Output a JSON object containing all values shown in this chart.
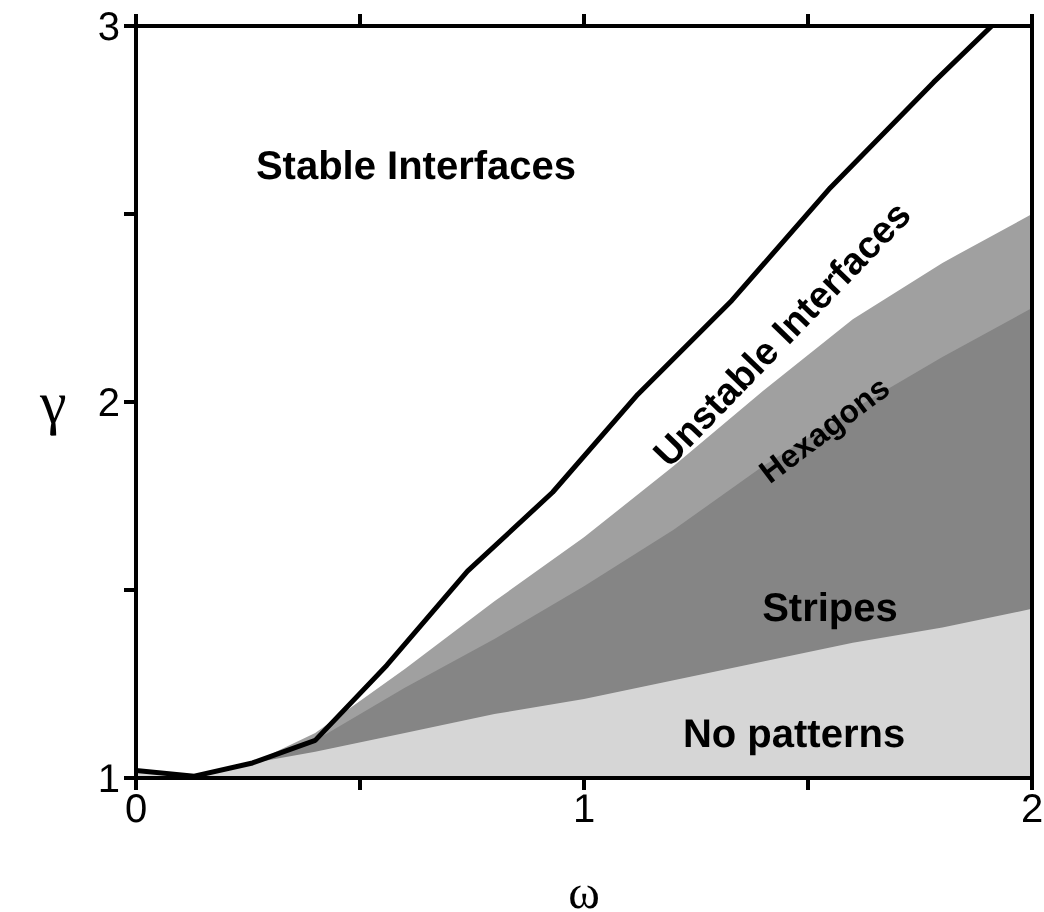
{
  "chart_data": {
    "type": "area",
    "xlabel": "ω",
    "ylabel": "γ",
    "x": [
      0,
      0.13,
      0.26,
      0.4,
      0.6,
      0.8,
      1.0,
      1.2,
      1.4,
      1.6,
      1.8,
      2.0
    ],
    "series": [
      {
        "color": "#a0a0a0",
        "values": [
          1.02,
          1.005,
          1.04,
          1.12,
          1.29,
          1.47,
          1.64,
          1.83,
          2.03,
          2.22,
          2.37,
          2.5
        ]
      },
      {
        "color": "#858585",
        "values": [
          1.02,
          1.005,
          1.04,
          1.1,
          1.24,
          1.37,
          1.51,
          1.66,
          1.83,
          1.98,
          2.12,
          2.25
        ]
      },
      {
        "color": "#d6d6d6",
        "values": [
          1.02,
          1.005,
          1.04,
          1.07,
          1.12,
          1.17,
          1.21,
          1.26,
          1.31,
          1.36,
          1.4,
          1.45
        ]
      },
      {
        "type": "line",
        "color": "#000000",
        "x": [
          0,
          0.13,
          0.26,
          0.4,
          0.56,
          0.74,
          0.93,
          1.12,
          1.33,
          1.55,
          1.78,
          1.91
        ],
        "values": [
          1.02,
          1.005,
          1.04,
          1.1,
          1.3,
          1.55,
          1.76,
          2.02,
          2.27,
          2.57,
          2.85,
          3.0
        ]
      }
    ],
    "annotations": [
      "Stable Interfaces",
      "Unstable Interfaces",
      "Hexagons",
      "Stripes",
      "No patterns"
    ],
    "xlim": [
      0,
      2
    ],
    "ylim": [
      1,
      3
    ],
    "xticks": [
      0,
      {
        "value": 0.5,
        "label": null
      },
      1,
      {
        "value": 1.5,
        "label": null
      },
      2
    ],
    "yticks": [
      1,
      {
        "value": 1.5,
        "label": null
      },
      2,
      {
        "value": 2.5,
        "label": null
      },
      3
    ],
    "grid": false,
    "legend": false
  }
}
